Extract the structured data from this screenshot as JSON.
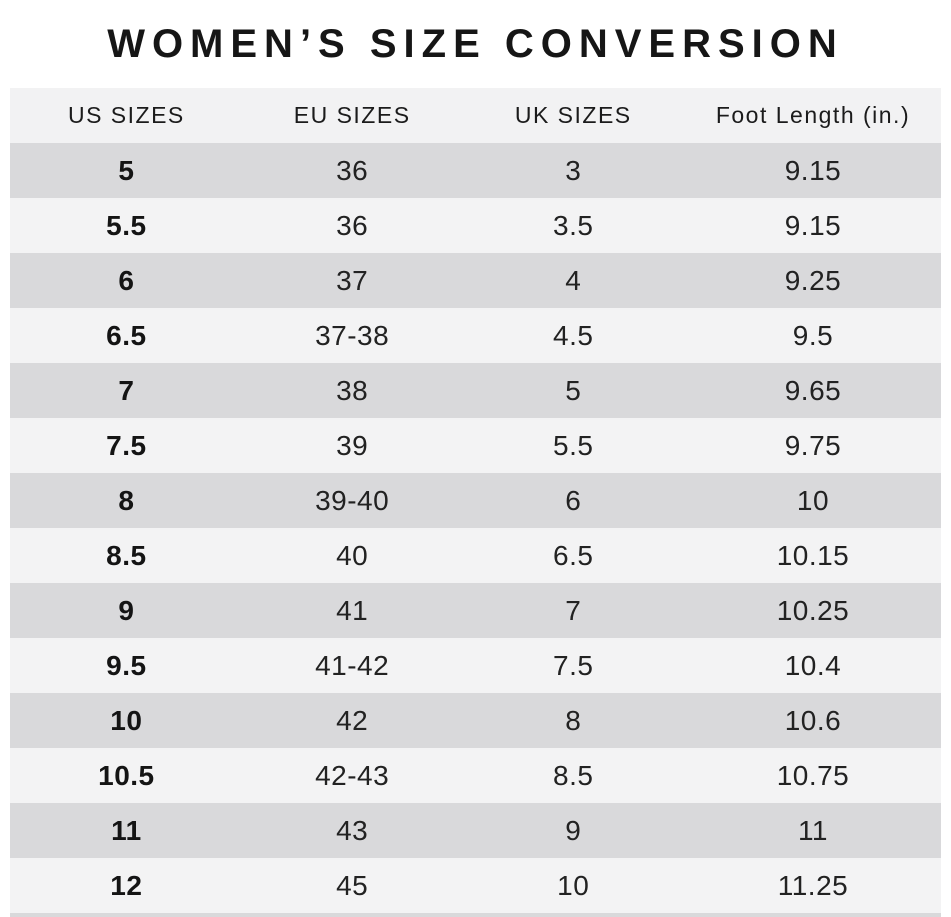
{
  "title": "WOMEN’S SIZE CONVERSION",
  "colors": {
    "page_bg": "#ffffff",
    "header_bg": "#f2f2f3",
    "row_dark": "#d9d9db",
    "row_light": "#f3f3f4",
    "text": "#1f1f1f"
  },
  "table": {
    "columns": [
      "US SIZES",
      "EU SIZES",
      "UK SIZES",
      "Foot Length (in.)"
    ],
    "rows": [
      [
        "5",
        "36",
        "3",
        "9.15"
      ],
      [
        "5.5",
        "36",
        "3.5",
        "9.15"
      ],
      [
        "6",
        "37",
        "4",
        "9.25"
      ],
      [
        "6.5",
        "37-38",
        "4.5",
        "9.5"
      ],
      [
        "7",
        "38",
        "5",
        "9.65"
      ],
      [
        "7.5",
        "39",
        "5.5",
        "9.75"
      ],
      [
        "8",
        "39-40",
        "6",
        "10"
      ],
      [
        "8.5",
        "40",
        "6.5",
        "10.15"
      ],
      [
        "9",
        "41",
        "7",
        "10.25"
      ],
      [
        "9.5",
        "41-42",
        "7.5",
        "10.4"
      ],
      [
        "10",
        "42",
        "8",
        "10.6"
      ],
      [
        "10.5",
        "42-43",
        "8.5",
        "10.75"
      ],
      [
        "11",
        "43",
        "9",
        "11"
      ],
      [
        "12",
        "45",
        "10",
        "11.25"
      ]
    ]
  },
  "chart_data": {
    "type": "table",
    "title": "WOMEN’S SIZE CONVERSION",
    "columns": [
      "US SIZES",
      "EU SIZES",
      "UK SIZES",
      "Foot Length (in.)"
    ],
    "rows": [
      [
        "5",
        "36",
        "3",
        "9.15"
      ],
      [
        "5.5",
        "36",
        "3.5",
        "9.15"
      ],
      [
        "6",
        "37",
        "4",
        "9.25"
      ],
      [
        "6.5",
        "37-38",
        "4.5",
        "9.5"
      ],
      [
        "7",
        "38",
        "5",
        "9.65"
      ],
      [
        "7.5",
        "39",
        "5.5",
        "9.75"
      ],
      [
        "8",
        "39-40",
        "6",
        "10"
      ],
      [
        "8.5",
        "40",
        "6.5",
        "10.15"
      ],
      [
        "9",
        "41",
        "7",
        "10.25"
      ],
      [
        "9.5",
        "41-42",
        "7.5",
        "10.4"
      ],
      [
        "10",
        "42",
        "8",
        "10.6"
      ],
      [
        "10.5",
        "42-43",
        "8.5",
        "10.75"
      ],
      [
        "11",
        "43",
        "9",
        "11"
      ],
      [
        "12",
        "45",
        "10",
        "11.25"
      ]
    ],
    "layout": {
      "row_striping": [
        "dark",
        "light"
      ],
      "first_column_bold": true,
      "alignment": "center"
    }
  }
}
